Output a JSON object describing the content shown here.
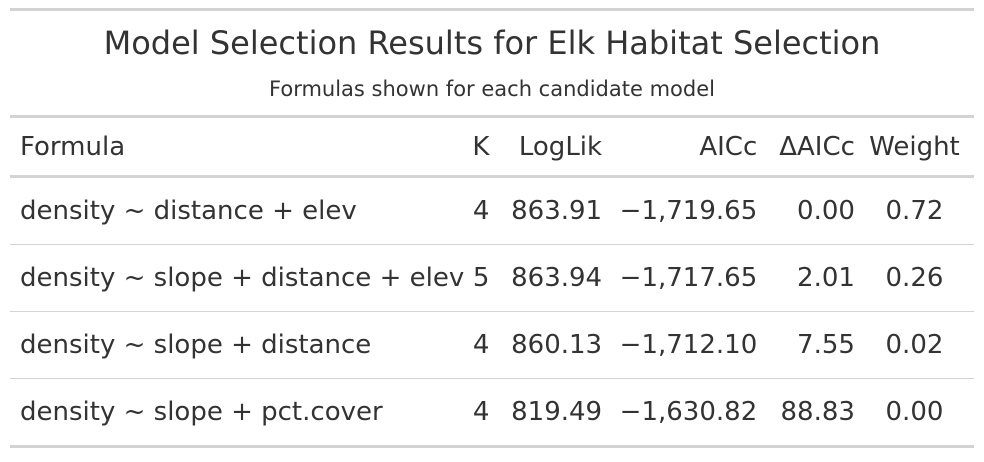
{
  "table": {
    "title": "Model Selection Results for Elk Habitat Selection",
    "subtitle": "Formulas shown for each candidate model",
    "columns": {
      "formula": "Formula",
      "k": "K",
      "loglik": "LogLik",
      "aicc": "AICc",
      "delta_aicc": "ΔAICc",
      "weight": "Weight"
    },
    "rows": [
      {
        "formula": "density ~ distance + elev",
        "k": "4",
        "loglik": "863.91",
        "aicc": "−1,719.65",
        "delta_aicc": "0.00",
        "weight": "0.72"
      },
      {
        "formula": "density ~ slope + distance + elev",
        "k": "5",
        "loglik": "863.94",
        "aicc": "−1,717.65",
        "delta_aicc": "2.01",
        "weight": "0.26"
      },
      {
        "formula": "density ~ slope + distance",
        "k": "4",
        "loglik": "860.13",
        "aicc": "−1,712.10",
        "delta_aicc": "7.55",
        "weight": "0.02"
      },
      {
        "formula": "density ~ slope + pct.cover",
        "k": "4",
        "loglik": "819.49",
        "aicc": "−1,630.82",
        "delta_aicc": "88.83",
        "weight": "0.00"
      }
    ]
  }
}
